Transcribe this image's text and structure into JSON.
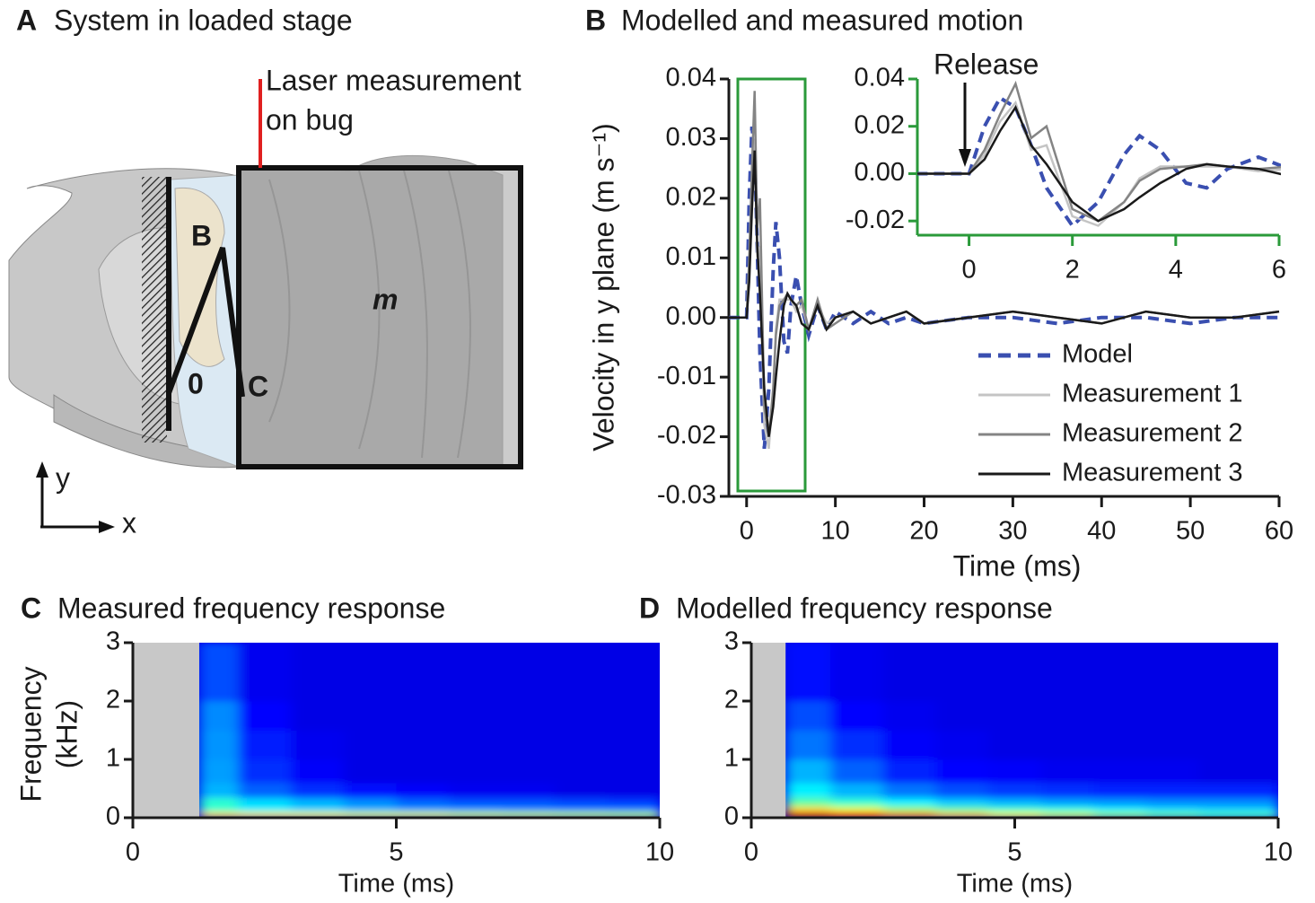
{
  "diagram": {
    "label": "A",
    "title": "System in loaded stage",
    "laser": [
      "Laser measurement",
      "on bug"
    ],
    "points": {
      "B": "B",
      "m": "m",
      "origin": "0",
      "C": "C"
    },
    "axes": {
      "y": "y",
      "x": "x"
    }
  },
  "chart_data": [
    {
      "type": "line",
      "panel_label": "B",
      "title": "Modelled and measured motion",
      "xlabel": "Time (ms)",
      "ylabel": "Velocity in y plane (m s⁻¹)",
      "x": [
        -2,
        -1,
        0,
        0.3,
        0.6,
        0.9,
        1.2,
        1.5,
        2,
        2.5,
        3,
        3.3,
        3.7,
        4.2,
        4.6,
        5,
        5.6,
        6.2,
        7,
        8,
        9,
        10,
        12,
        14,
        16,
        18,
        20,
        25,
        30,
        35,
        40,
        45,
        50,
        55,
        60
      ],
      "series": [
        {
          "name": "Model",
          "color": "#3a4fb0",
          "style": "dashed",
          "values": [
            0,
            0,
            0,
            0.02,
            0.032,
            0.028,
            0.012,
            -0.006,
            -0.022,
            -0.012,
            0.008,
            0.016,
            0.01,
            -0.004,
            -0.006,
            0.002,
            0.007,
            0.002,
            -0.003,
            0.002,
            -0.002,
            0.001,
            -0.001,
            0.001,
            -0.001,
            0,
            -0.001,
            0,
            0,
            -0.001,
            0,
            0,
            -0.001,
            0,
            0
          ]
        },
        {
          "name": "Measurement 1",
          "color": "#c4c4c4",
          "style": "solid",
          "values": [
            0,
            0,
            0,
            0.008,
            0.022,
            0.03,
            0.01,
            0.012,
            -0.018,
            -0.022,
            -0.012,
            -0.002,
            0.003,
            0.003,
            0.003,
            0.003,
            0.001,
            0.002,
            -0.002,
            0.002,
            -0.001,
            0,
            0.001,
            -0.001,
            0,
            0.001,
            -0.001,
            0,
            0.001,
            0,
            -0.001,
            0.001,
            0,
            0,
            0.001
          ]
        },
        {
          "name": "Measurement 2",
          "color": "#848484",
          "style": "solid",
          "values": [
            0,
            0,
            0,
            0.01,
            0.025,
            0.038,
            0.015,
            0.02,
            -0.015,
            -0.02,
            -0.012,
            -0.003,
            0.002,
            0.003,
            0.004,
            0.003,
            0.002,
            0.003,
            -0.002,
            0.003,
            -0.002,
            -0.001,
            0.001,
            -0.001,
            0,
            0.001,
            -0.001,
            0,
            0.001,
            0,
            -0.001,
            0.001,
            0,
            0,
            0.001
          ]
        },
        {
          "name": "Measurement 3",
          "color": "#1a1a1a",
          "style": "solid",
          "values": [
            0,
            0,
            0,
            0.006,
            0.018,
            0.028,
            0.012,
            0.004,
            -0.012,
            -0.02,
            -0.015,
            -0.01,
            -0.004,
            0.002,
            0.004,
            0.003,
            0.002,
            -0.001,
            -0.002,
            0.002,
            -0.002,
            0,
            0.001,
            -0.001,
            0,
            0.001,
            -0.001,
            0,
            0.001,
            0,
            -0.001,
            0.001,
            0,
            0,
            0.001
          ]
        }
      ],
      "xlim": [
        -2,
        60
      ],
      "xticks": [
        0,
        10,
        20,
        30,
        40,
        50,
        60
      ],
      "ylim": [
        -0.03,
        0.04
      ],
      "yticks": [
        0.04,
        0.03,
        0.02,
        0.01,
        {
          "value": 0,
          "label": "0.00"
        },
        -0.01,
        -0.02,
        -0.03
      ],
      "inset": {
        "annotation": "Release",
        "xlim": [
          -1,
          6
        ],
        "xticks": [
          0,
          2,
          4,
          6
        ],
        "ylim": [
          -0.026,
          0.04
        ],
        "yticks": [
          0.04,
          0.02,
          {
            "value": 0,
            "label": "0.00"
          },
          -0.02
        ]
      }
    },
    {
      "type": "heatmap",
      "panel_label": "C",
      "title": "Measured frequency response",
      "xlabel": "Time (ms)",
      "ylabel": [
        "Frequency",
        "(kHz)"
      ],
      "colormap": "jet",
      "xlim": [
        0,
        10
      ],
      "xticks": [
        0,
        5,
        10
      ],
      "ylim": [
        0,
        3
      ],
      "yticks": [
        0,
        1,
        2,
        3
      ],
      "x_edges": [
        1.26,
        2,
        3,
        4,
        5,
        6,
        7,
        8,
        9,
        10
      ],
      "y_edges": [
        0,
        0.1,
        0.2,
        0.35,
        0.6,
        1,
        1.5,
        2,
        3
      ],
      "z": [
        [
          0.66,
          0.64,
          0.62,
          0.6,
          0.6,
          0.58,
          0.57,
          0.56,
          0.55
        ],
        [
          0.42,
          0.36,
          0.33,
          0.3,
          0.28,
          0.27,
          0.26,
          0.25,
          0.25
        ],
        [
          0.42,
          0.34,
          0.3,
          0.26,
          0.22,
          0.2,
          0.2,
          0.19,
          0.18
        ],
        [
          0.3,
          0.22,
          0.17,
          0.14,
          0.12,
          0.11,
          0.11,
          0.1,
          0.1
        ],
        [
          0.28,
          0.17,
          0.12,
          0.1,
          0.1,
          0.1,
          0.1,
          0.1,
          0.1
        ],
        [
          0.27,
          0.15,
          0.11,
          0.1,
          0.1,
          0.1,
          0.1,
          0.1,
          0.1
        ],
        [
          0.26,
          0.13,
          0.1,
          0.1,
          0.1,
          0.1,
          0.1,
          0.1,
          0.1
        ],
        [
          0.2,
          0.11,
          0.1,
          0.1,
          0.1,
          0.1,
          0.1,
          0.1,
          0.1
        ]
      ]
    },
    {
      "type": "heatmap",
      "panel_label": "D",
      "title": "Modelled frequency response",
      "xlabel": "Time (ms)",
      "colormap": "jet",
      "xlim": [
        0,
        10
      ],
      "xticks": [
        0,
        5,
        10
      ],
      "ylim": [
        0,
        3
      ],
      "yticks": [
        0,
        1,
        2,
        3
      ],
      "x_edges": [
        0.65,
        1.5,
        2.5,
        3.5,
        4.5,
        5.5,
        6.5,
        7.5,
        8.5,
        10
      ],
      "y_edges": [
        0,
        0.1,
        0.2,
        0.35,
        0.6,
        1,
        1.5,
        2,
        3
      ],
      "z": [
        [
          0.92,
          0.85,
          0.75,
          0.68,
          0.62,
          0.58,
          0.52,
          0.48,
          0.45
        ],
        [
          0.66,
          0.6,
          0.52,
          0.46,
          0.42,
          0.4,
          0.36,
          0.34,
          0.33
        ],
        [
          0.46,
          0.42,
          0.36,
          0.32,
          0.3,
          0.28,
          0.27,
          0.26,
          0.26
        ],
        [
          0.36,
          0.3,
          0.24,
          0.2,
          0.18,
          0.17,
          0.16,
          0.16,
          0.16
        ],
        [
          0.3,
          0.22,
          0.16,
          0.13,
          0.12,
          0.11,
          0.11,
          0.11,
          0.1
        ],
        [
          0.24,
          0.17,
          0.12,
          0.11,
          0.1,
          0.1,
          0.1,
          0.1,
          0.1
        ],
        [
          0.2,
          0.13,
          0.11,
          0.1,
          0.1,
          0.1,
          0.1,
          0.1,
          0.1
        ],
        [
          0.14,
          0.11,
          0.1,
          0.1,
          0.1,
          0.1,
          0.1,
          0.1,
          0.1
        ]
      ]
    }
  ]
}
